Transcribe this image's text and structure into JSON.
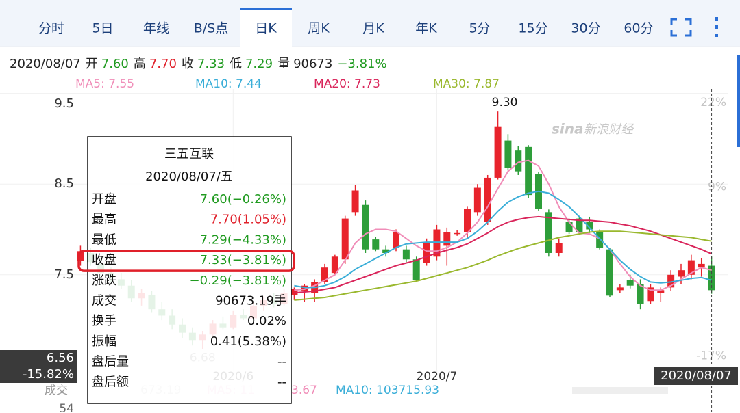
{
  "header": {
    "tabs": [
      "分时",
      "5日",
      "年线",
      "B/S点",
      "日K",
      "周K",
      "月K",
      "年K",
      "5分",
      "15分",
      "30分",
      "60分"
    ],
    "active_tab": 4
  },
  "quote": {
    "date": "2020/08/07",
    "items": [
      {
        "label": "开",
        "value": "7.60",
        "color": "#1f9a1f"
      },
      {
        "label": "高",
        "value": "7.70",
        "color": "#e0202a"
      },
      {
        "label": "收",
        "value": "7.33",
        "color": "#1f9a1f"
      },
      {
        "label": "低",
        "value": "7.29",
        "color": "#1f9a1f"
      },
      {
        "label": "量",
        "value": "90673",
        "color": "#222222"
      }
    ],
    "change": "−3.81%",
    "change_color": "#1f9a1f"
  },
  "chart_data": {
    "type": "candlestick",
    "categories": [
      null,
      null,
      null,
      null,
      null,
      null,
      null,
      null,
      null,
      null,
      null,
      null,
      null,
      null,
      null,
      "2020/6",
      null,
      null,
      null,
      null,
      null,
      null,
      null,
      null,
      null,
      null,
      null,
      null,
      null,
      null,
      null,
      null,
      null,
      null,
      null,
      "2020/7",
      null,
      null,
      null,
      null,
      null,
      null,
      null,
      null,
      null,
      null,
      null,
      null,
      null,
      null,
      null,
      null,
      null,
      null,
      null,
      null,
      null,
      null,
      null,
      null,
      null,
      null,
      null
    ],
    "open": [
      7.65,
      7.74,
      7.62,
      7.52,
      7.45,
      7.38,
      7.24,
      7.28,
      7.12,
      7.05,
      6.95,
      6.86,
      6.78,
      6.84,
      6.96,
      6.92,
      7.06,
      7.02,
      7.16,
      7.22,
      7.18,
      7.28,
      7.32,
      7.3,
      7.42,
      7.52,
      7.67,
      8.19,
      8.27,
      7.89,
      7.78,
      7.8,
      7.78,
      7.67,
      7.63,
      7.7,
      7.82,
      7.95,
      7.97,
      8.19,
      8.08,
      8.57,
      8.98,
      8.87,
      8.91,
      8.61,
      8.19,
      7.74,
      8.08,
      8.12,
      8.08,
      7.97,
      7.78,
      7.33,
      7.44,
      7.4,
      7.21,
      7.3,
      7.36,
      7.48,
      7.5,
      7.58,
      7.6
    ],
    "high": [
      7.82,
      7.8,
      7.68,
      7.58,
      7.52,
      7.44,
      7.34,
      7.32,
      7.2,
      7.12,
      7.02,
      6.92,
      6.88,
      7.0,
      7.04,
      7.1,
      7.12,
      7.2,
      7.26,
      7.3,
      7.34,
      7.36,
      7.4,
      7.45,
      7.62,
      7.72,
      8.15,
      8.49,
      8.32,
      7.92,
      7.82,
      8.0,
      7.82,
      7.7,
      7.9,
      8.05,
      8.02,
      7.99,
      8.25,
      8.5,
      8.6,
      9.3,
      9.05,
      8.92,
      8.93,
      8.63,
      8.22,
      7.9,
      8.12,
      8.15,
      8.14,
      8.0,
      7.8,
      7.4,
      7.5,
      7.45,
      7.4,
      7.36,
      7.55,
      7.62,
      7.72,
      7.68,
      7.7
    ],
    "low": [
      7.6,
      7.6,
      7.48,
      7.42,
      7.34,
      7.2,
      7.16,
      7.08,
      7.0,
      6.9,
      6.8,
      6.72,
      6.68,
      6.82,
      6.9,
      6.9,
      7.0,
      7.0,
      7.1,
      7.14,
      7.16,
      7.22,
      7.2,
      7.2,
      7.4,
      7.5,
      7.62,
      8.15,
      7.74,
      7.76,
      7.7,
      7.76,
      7.64,
      7.42,
      7.6,
      7.66,
      7.6,
      7.93,
      7.9,
      8.15,
      8.05,
      8.55,
      8.65,
      8.6,
      8.35,
      8.2,
      7.7,
      7.7,
      7.95,
      7.95,
      7.96,
      7.78,
      7.25,
      7.3,
      7.35,
      7.12,
      7.18,
      7.2,
      7.32,
      7.4,
      7.45,
      7.48,
      7.29
    ],
    "close": [
      7.76,
      7.64,
      7.52,
      7.46,
      7.38,
      7.24,
      7.3,
      7.12,
      7.05,
      6.95,
      6.86,
      6.78,
      6.84,
      6.96,
      6.92,
      7.06,
      7.02,
      7.16,
      7.22,
      7.18,
      7.3,
      7.34,
      7.38,
      7.42,
      7.58,
      7.7,
      8.12,
      8.43,
      7.78,
      7.78,
      7.74,
      7.97,
      7.67,
      7.44,
      7.85,
      8.0,
      7.97,
      7.96,
      8.23,
      8.46,
      8.57,
      9.13,
      8.68,
      8.64,
      8.38,
      8.23,
      7.74,
      7.85,
      7.97,
      7.97,
      8.0,
      7.8,
      7.27,
      7.36,
      7.38,
      7.18,
      7.36,
      7.33,
      7.5,
      7.55,
      7.66,
      7.62,
      7.33
    ],
    "up_color": "#e8232c",
    "down_color": "#2e9e3a",
    "series": [
      {
        "name": "MA5: 7.55",
        "color": "#f08db8",
        "values": [
          null,
          null,
          null,
          null,
          null,
          null,
          null,
          null,
          null,
          null,
          null,
          null,
          null,
          null,
          null,
          null,
          null,
          null,
          null,
          null,
          null,
          7.33,
          7.34,
          7.38,
          7.44,
          7.5,
          7.66,
          7.85,
          7.95,
          8.0,
          8.0,
          7.98,
          7.9,
          7.82,
          7.76,
          7.76,
          7.8,
          7.86,
          7.96,
          8.08,
          8.25,
          8.45,
          8.64,
          8.74,
          8.76,
          8.7,
          8.5,
          8.25,
          8.08,
          7.96,
          7.95,
          7.9,
          7.78,
          7.62,
          7.48,
          7.38,
          7.33,
          7.33,
          7.38,
          7.45,
          7.52,
          7.58,
          7.55
        ]
      },
      {
        "name": "MA10: 7.44",
        "color": "#3aaed8",
        "values": [
          null,
          null,
          null,
          null,
          null,
          null,
          null,
          null,
          null,
          null,
          null,
          null,
          null,
          null,
          null,
          null,
          null,
          null,
          null,
          null,
          null,
          7.38,
          7.36,
          7.36,
          7.38,
          7.42,
          7.48,
          7.56,
          7.62,
          7.68,
          7.74,
          7.8,
          7.84,
          7.85,
          7.86,
          7.86,
          7.86,
          7.86,
          7.9,
          7.98,
          8.08,
          8.2,
          8.3,
          8.36,
          8.4,
          8.42,
          8.4,
          8.33,
          8.25,
          8.14,
          8.02,
          7.9,
          7.78,
          7.66,
          7.56,
          7.48,
          7.42,
          7.41,
          7.42,
          7.44,
          7.46,
          7.47,
          7.44
        ]
      },
      {
        "name": "MA20: 7.73",
        "color": "#d9245a",
        "values": [
          null,
          null,
          null,
          null,
          null,
          null,
          null,
          null,
          null,
          null,
          null,
          null,
          null,
          null,
          null,
          null,
          null,
          null,
          null,
          null,
          null,
          7.3,
          7.31,
          7.32,
          7.34,
          7.36,
          7.4,
          7.44,
          7.48,
          7.52,
          7.56,
          7.6,
          7.63,
          7.66,
          7.7,
          7.74,
          7.77,
          7.8,
          7.84,
          7.9,
          7.96,
          8.03,
          8.08,
          8.11,
          8.13,
          8.14,
          8.13,
          8.12,
          8.11,
          8.1,
          8.1,
          8.09,
          8.08,
          8.06,
          8.04,
          8.01,
          7.98,
          7.94,
          7.9,
          7.86,
          7.82,
          7.78,
          7.73
        ]
      },
      {
        "name": "MA30: 7.87",
        "color": "#9ab82e",
        "values": [
          null,
          null,
          null,
          null,
          null,
          null,
          null,
          null,
          null,
          null,
          null,
          null,
          null,
          null,
          null,
          null,
          null,
          null,
          null,
          null,
          null,
          7.22,
          7.23,
          7.24,
          7.25,
          7.27,
          7.29,
          7.31,
          7.33,
          7.35,
          7.37,
          7.39,
          7.41,
          7.43,
          7.46,
          7.49,
          7.52,
          7.55,
          7.58,
          7.62,
          7.66,
          7.71,
          7.75,
          7.79,
          7.82,
          7.85,
          7.88,
          7.91,
          7.93,
          7.95,
          7.97,
          7.98,
          7.98,
          7.98,
          7.97,
          7.96,
          7.95,
          7.94,
          7.93,
          7.92,
          7.91,
          7.89,
          7.87
        ]
      }
    ],
    "ylim": [
      6.42,
      9.55
    ],
    "yticks": [
      7.5,
      8.5,
      9.5
    ],
    "y2lim": [
      -19.6,
      24.1
    ],
    "y2ticks": [
      {
        "value": 22,
        "label": "22%"
      },
      {
        "value": 9,
        "label": "9%"
      },
      {
        "value": -17,
        "label": "-17%"
      }
    ],
    "grid": true,
    "high_marker": {
      "value": 9.3,
      "label": "9.30"
    },
    "low_marker": 6.68,
    "crosshair": {
      "price": 6.56,
      "percent": {
        "value": -15.82,
        "label": "-15.82%"
      },
      "date": "2020/08/07"
    }
  },
  "watermark": {
    "logo": "sina",
    "text": "新浪财经"
  },
  "tooltip": {
    "name": "三五互联",
    "date": "2020/08/07/五",
    "highlight_row": 3,
    "rows": [
      {
        "label": "开盘",
        "value": "7.60(−0.26%)",
        "color": "#1f9a1f"
      },
      {
        "label": "最高",
        "value": "7.70(1.05%)",
        "color": "#e0202a"
      },
      {
        "label": "最低",
        "value": "7.29(−4.33%)",
        "color": "#1f9a1f"
      },
      {
        "label": "收盘",
        "value": "7.33(−3.81%)",
        "color": "#1f9a1f"
      },
      {
        "label": "涨跌",
        "value": "−0.29(−3.81%)",
        "color": "#1f9a1f"
      },
      {
        "label": "成交",
        "value": "90673.19手",
        "color": "#111111"
      },
      {
        "label": "换手",
        "value": "0.02%",
        "color": "#111111"
      },
      {
        "label": "振幅",
        "value": "0.41(5.38%)",
        "color": "#111111"
      },
      {
        "label": "盘后量",
        "value": "--",
        "color": "#111111"
      },
      {
        "label": "盘后额",
        "value": "--",
        "color": "#111111"
      }
    ]
  },
  "volume": {
    "label": "成交",
    "axis_label": 54,
    "items": [
      {
        "text": "673.19",
        "color": "#cccccc"
      },
      {
        "text": "MA5: 11",
        "color": "#f6c6dc"
      },
      {
        "text": "3.67",
        "color": "#f08db8"
      },
      {
        "text": "MA10: 103715.93",
        "color": "#3aaed8"
      }
    ]
  }
}
